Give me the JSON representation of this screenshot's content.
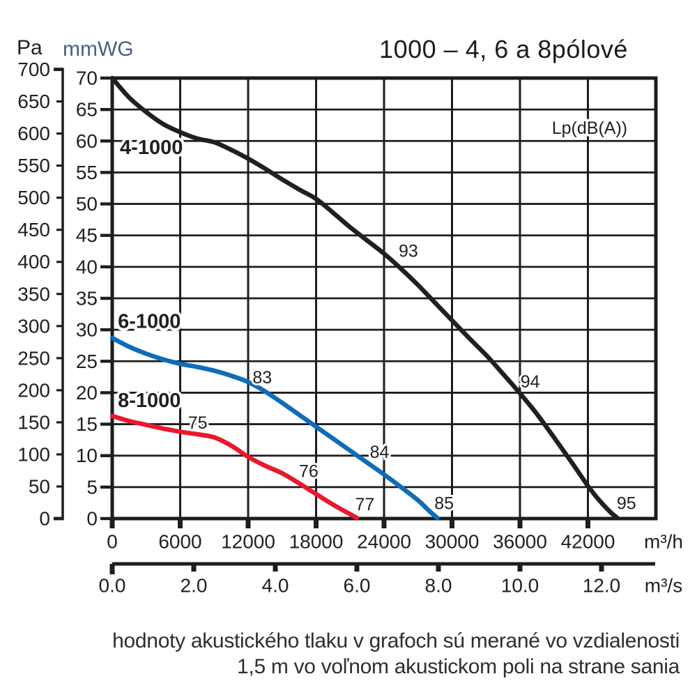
{
  "title": "1000 – 4, 6 a 8pólové",
  "footer": {
    "line1": "hodnoty akustického tlaku v grafoch sú merané vo vzdialenosti",
    "line2": "1,5 m vo voľnom akustickom poli na strane sania"
  },
  "colors": {
    "curve_black": "#231f20",
    "curve_blue": "#0f6cb8",
    "curve_red": "#e8192c",
    "grid": "#1d1d1f",
    "mmwg_title": "#4a5f83",
    "text": "#231f20"
  },
  "chart_data": {
    "type": "line",
    "title": "1000 – 4, 6 a 8pólové",
    "grid": true,
    "sound_pressure_label": {
      "text": "Lp(dB(A))",
      "pos": [
        42150,
        62.0
      ]
    },
    "axes": {
      "pa": {
        "label": "Pa",
        "ticks": [
          700,
          650,
          600,
          550,
          500,
          450,
          400,
          350,
          300,
          250,
          200,
          150,
          100,
          50,
          0
        ]
      },
      "mmwg": {
        "label": "mmWG",
        "ticks": [
          70,
          65,
          60,
          55,
          50,
          45,
          40,
          35,
          30,
          25,
          20,
          15,
          10,
          5,
          0
        ],
        "range": [
          0,
          70
        ],
        "grid_step": 5
      },
      "m3h": {
        "label": "m³/h",
        "ticks": [
          0,
          6000,
          12000,
          18000,
          24000,
          30000,
          36000,
          42000
        ],
        "range": [
          0,
          48000
        ],
        "grid_step": 6000
      },
      "m3s": {
        "label": "m³/s",
        "ticks": [
          "0.0",
          "2.0",
          "4.0",
          "6.0",
          "8.0",
          "10.0",
          "12.0"
        ],
        "units_per_m3h": 3600
      }
    },
    "series": [
      {
        "name": "4-1000",
        "color": "#231f20",
        "name_pos": [
          680,
          57.9
        ],
        "db_labels": [
          {
            "text": "93",
            "pos": [
              26150,
              42.5
            ]
          },
          {
            "text": "94",
            "pos": [
              36900,
              21.7
            ]
          },
          {
            "text": "95",
            "pos": [
              45400,
              2.4
            ]
          }
        ],
        "points": [
          [
            0,
            70
          ],
          [
            1500,
            66.9
          ],
          [
            3000,
            64.6
          ],
          [
            4500,
            62.7
          ],
          [
            6000,
            61.4
          ],
          [
            7500,
            60.4
          ],
          [
            9000,
            59.8
          ],
          [
            10500,
            58.6
          ],
          [
            12000,
            57.2
          ],
          [
            13500,
            55.6
          ],
          [
            15000,
            53.9
          ],
          [
            16500,
            52.3
          ],
          [
            18000,
            50.8
          ],
          [
            19500,
            48.6
          ],
          [
            21000,
            46.3
          ],
          [
            22500,
            44.2
          ],
          [
            24000,
            42.1
          ],
          [
            25500,
            39.7
          ],
          [
            27000,
            37.1
          ],
          [
            28500,
            34.3
          ],
          [
            30000,
            31.5
          ],
          [
            31500,
            28.7
          ],
          [
            33000,
            26.0
          ],
          [
            34500,
            23.0
          ],
          [
            36000,
            19.9
          ],
          [
            37500,
            16.6
          ],
          [
            39000,
            12.9
          ],
          [
            40500,
            9.1
          ],
          [
            42000,
            5.2
          ],
          [
            43000,
            2.9
          ],
          [
            44000,
            1.0
          ],
          [
            44600,
            0.1
          ]
        ]
      },
      {
        "name": "6-1000",
        "color": "#0f6cb8",
        "name_pos": [
          500,
          30.3
        ],
        "db_labels": [
          {
            "text": "83",
            "pos": [
              13250,
              22.4
            ]
          },
          {
            "text": "84",
            "pos": [
              23600,
              10.5
            ]
          },
          {
            "text": "85",
            "pos": [
              29300,
              2.4
            ]
          }
        ],
        "points": [
          [
            0,
            28.7
          ],
          [
            1500,
            27.3
          ],
          [
            3000,
            26.2
          ],
          [
            4500,
            25.3
          ],
          [
            6000,
            24.6
          ],
          [
            7500,
            24.1
          ],
          [
            9000,
            23.5
          ],
          [
            10500,
            22.7
          ],
          [
            12000,
            21.7
          ],
          [
            13500,
            20.2
          ],
          [
            15000,
            18.4
          ],
          [
            16500,
            16.5
          ],
          [
            18000,
            14.6
          ],
          [
            19500,
            12.7
          ],
          [
            21000,
            10.8
          ],
          [
            22500,
            8.9
          ],
          [
            24000,
            7.0
          ],
          [
            25500,
            5.0
          ],
          [
            27000,
            2.9
          ],
          [
            28000,
            1.2
          ],
          [
            28700,
            0.1
          ]
        ]
      },
      {
        "name": "8-1000",
        "color": "#e8192c",
        "name_pos": [
          500,
          17.7
        ],
        "db_labels": [
          {
            "text": "75",
            "pos": [
              7550,
              15.2
            ]
          },
          {
            "text": "76",
            "pos": [
              17350,
              7.5
            ]
          },
          {
            "text": "77",
            "pos": [
              22300,
              2.2
            ]
          }
        ],
        "points": [
          [
            0,
            16.3
          ],
          [
            1500,
            15.5
          ],
          [
            3000,
            14.9
          ],
          [
            4500,
            14.3
          ],
          [
            6000,
            13.8
          ],
          [
            7500,
            13.4
          ],
          [
            9000,
            12.9
          ],
          [
            10500,
            11.6
          ],
          [
            12000,
            9.8
          ],
          [
            13500,
            8.4
          ],
          [
            15000,
            7.2
          ],
          [
            16500,
            5.6
          ],
          [
            18000,
            3.9
          ],
          [
            19500,
            2.2
          ],
          [
            21000,
            0.7
          ],
          [
            21600,
            0.1
          ]
        ]
      }
    ]
  }
}
